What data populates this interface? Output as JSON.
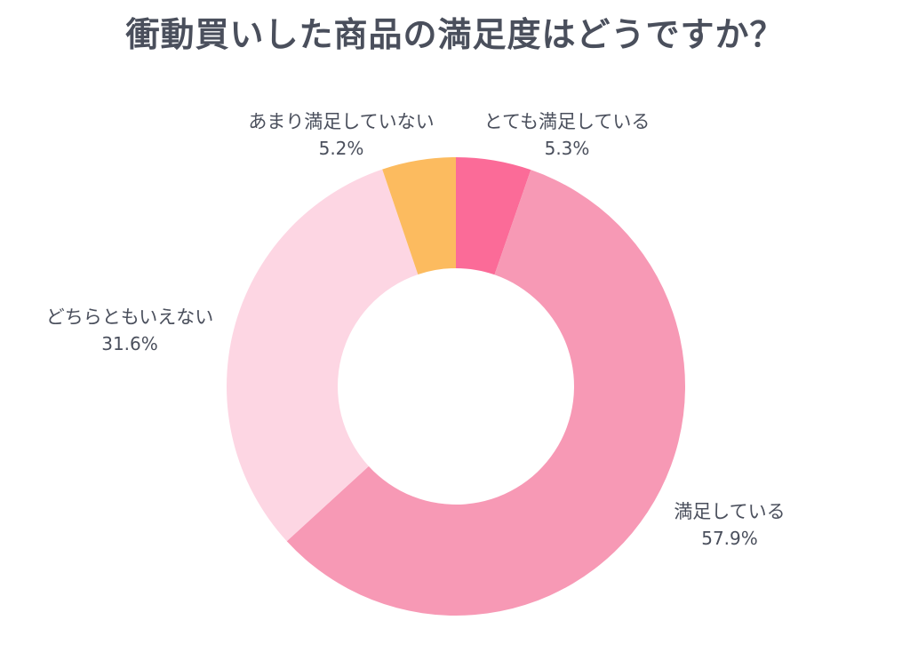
{
  "chart_data": {
    "type": "pie",
    "donut": true,
    "title": "衝動買いした商品の満足度はどうですか？",
    "slices": [
      {
        "label": "とても満足している",
        "value": 5.3,
        "display": "5.3%",
        "color": "#fb6b98"
      },
      {
        "label": "満足している",
        "value": 57.9,
        "display": "57.9%",
        "color": "#f799b5"
      },
      {
        "label": "どちらともいえない",
        "value": 31.6,
        "display": "31.6%",
        "color": "#fdd6e3"
      },
      {
        "label": "あまり満足していない",
        "value": 5.2,
        "display": "5.2%",
        "color": "#fcbb5f"
      }
    ]
  }
}
